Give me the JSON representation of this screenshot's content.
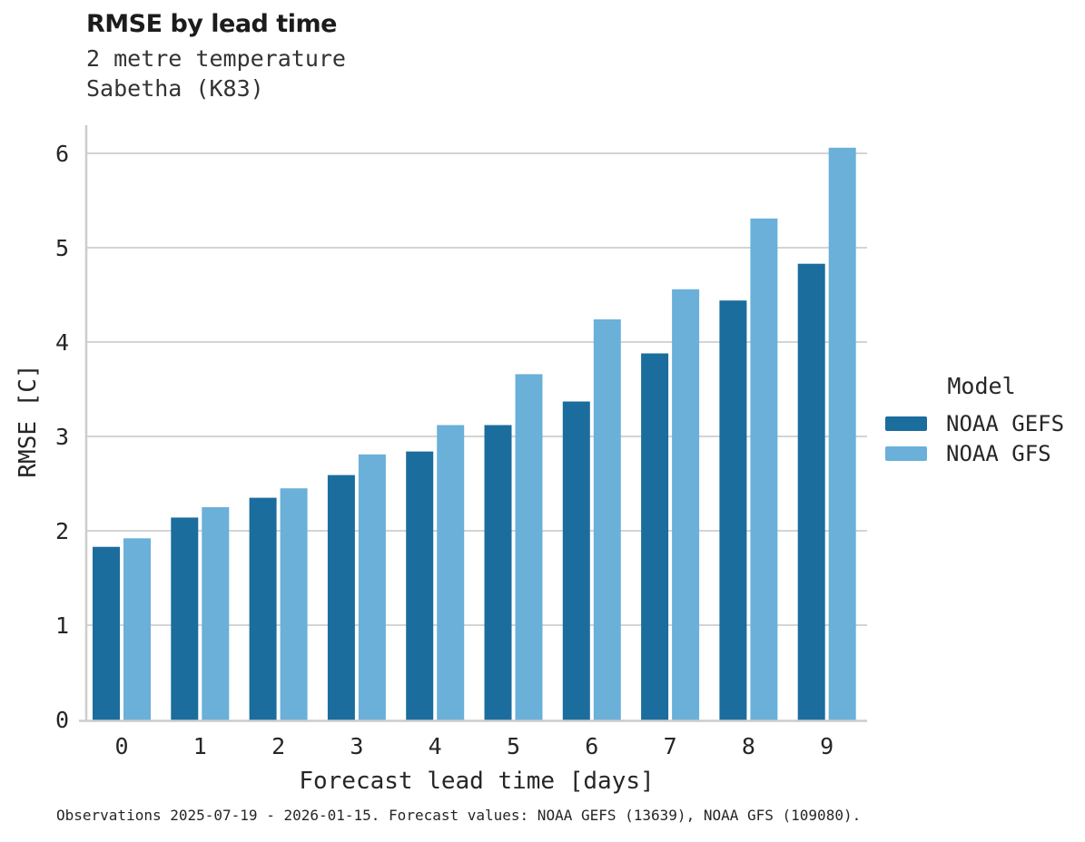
{
  "header": {
    "title": "RMSE by lead time",
    "subtitle_line1": "2 metre temperature",
    "subtitle_line2": "Sabetha (K83)"
  },
  "legend": {
    "title": "Model"
  },
  "footer": {
    "caption": "Observations 2025-07-19 - 2026-01-15. Forecast values: NOAA GEFS (13639), NOAA GFS (109080)."
  },
  "colors": {
    "gefs_dark_blue": "#1b6d9d",
    "gfs_light_blue": "#6ab0d9",
    "gridline": "#d4d4d4",
    "spine": "#cccccc",
    "tick_text": "#262626"
  },
  "chart_data": {
    "type": "bar",
    "title": "RMSE by lead time",
    "subtitle": [
      "2 metre temperature",
      "Sabetha (K83)"
    ],
    "categories": [
      "0",
      "1",
      "2",
      "3",
      "4",
      "5",
      "6",
      "7",
      "8",
      "9"
    ],
    "series": [
      {
        "name": "NOAA GEFS",
        "color": "#1b6d9d",
        "values": [
          1.83,
          2.14,
          2.35,
          2.59,
          2.84,
          3.12,
          3.37,
          3.88,
          4.44,
          4.83
        ]
      },
      {
        "name": "NOAA GFS",
        "color": "#6ab0d9",
        "values": [
          1.92,
          2.25,
          2.45,
          2.81,
          3.12,
          3.66,
          4.24,
          4.56,
          5.31,
          6.06
        ]
      }
    ],
    "xlabel": "Forecast lead time [days]",
    "ylabel": "RMSE [C]",
    "ylim": [
      0,
      6.3
    ],
    "yticks": [
      0,
      1,
      2,
      3,
      4,
      5,
      6
    ],
    "grid": "horizontal",
    "legend_title": "Model",
    "legend_position": "right",
    "caption": "Observations 2025-07-19 - 2026-01-15. Forecast values: NOAA GEFS (13639), NOAA GFS (109080)."
  }
}
